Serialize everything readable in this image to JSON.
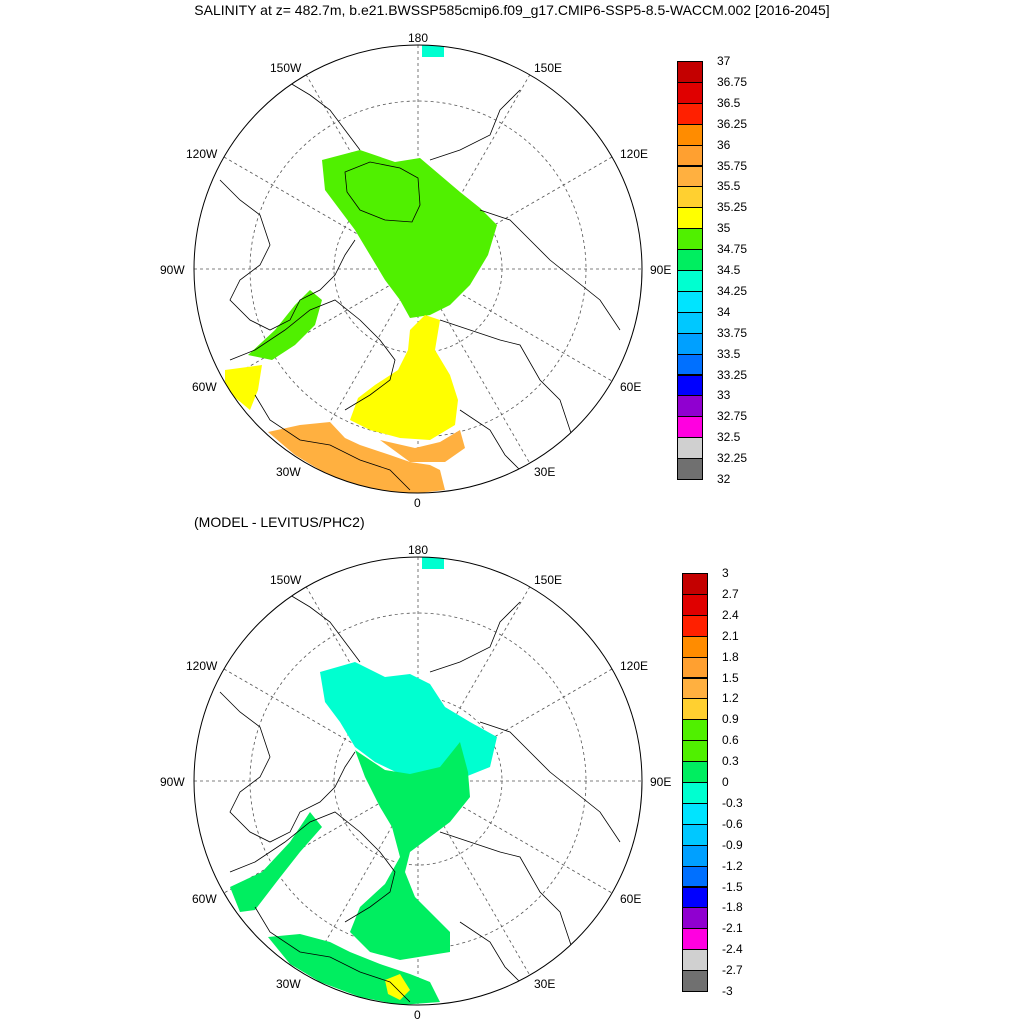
{
  "title": "SALINITY at z= 482.7m, b.e21.BWSSP585cmip6.f09_g17.CMIP6-SSP5-8.5-WACCM.002 [2016-2045]",
  "subtitle": "(MODEL - LEVITUS/PHC2)",
  "panels": [
    {
      "id": "salinity",
      "lon_labels": {
        "top": "180",
        "bottom": "0",
        "left": "90W",
        "right": "90E",
        "upper_left": "150W",
        "upper_right": "150E",
        "left_upper": "120W",
        "right_upper": "120E",
        "left_lower": "60W",
        "right_lower": "60E",
        "lower_left": "30W",
        "lower_right": "30E"
      },
      "colorbar": {
        "labels": [
          "37",
          "36.75",
          "36.5",
          "36.25",
          "36",
          "35.75",
          "35.5",
          "35.25",
          "35",
          "34.75",
          "34.5",
          "34.25",
          "34",
          "33.75",
          "33.5",
          "33.25",
          "33",
          "32.75",
          "32.5",
          "32.25",
          "32"
        ],
        "colors": [
          "#c40000",
          "#e00000",
          "#ff2000",
          "#ff8c00",
          "#ffa030",
          "#ffb040",
          "#ffd030",
          "#ffff00",
          "#50f000",
          "#00ee60",
          "#00ffd0",
          "#00e4ff",
          "#00c8ff",
          "#00a0ff",
          "#0070ff",
          "#0000ff",
          "#9000d0",
          "#ff00e0",
          "#d0d0d0",
          "#707070"
        ]
      }
    },
    {
      "id": "difference",
      "lon_labels": {
        "top": "180",
        "bottom": "0",
        "left": "90W",
        "right": "90E",
        "upper_left": "150W",
        "upper_right": "150E",
        "left_upper": "120W",
        "right_upper": "120E",
        "left_lower": "60W",
        "right_lower": "60E",
        "lower_left": "30W",
        "lower_right": "30E"
      },
      "colorbar": {
        "labels": [
          "3",
          "2.7",
          "2.4",
          "2.1",
          "1.8",
          "1.5",
          "1.2",
          "0.9",
          "0.6",
          "0.3",
          "0",
          "-0.3",
          "-0.6",
          "-0.9",
          "-1.2",
          "-1.5",
          "-1.8",
          "-2.1",
          "-2.4",
          "-2.7",
          "-3"
        ],
        "colors": [
          "#c40000",
          "#e00000",
          "#ff2000",
          "#ff8c00",
          "#ffa030",
          "#ffb040",
          "#ffd030",
          "#50f000",
          "#50f000",
          "#00ee60",
          "#00ffd0",
          "#00e4ff",
          "#00c8ff",
          "#00a0ff",
          "#0070ff",
          "#0000ff",
          "#9000d0",
          "#ff00e0",
          "#d0d0d0",
          "#707070"
        ]
      }
    }
  ]
}
